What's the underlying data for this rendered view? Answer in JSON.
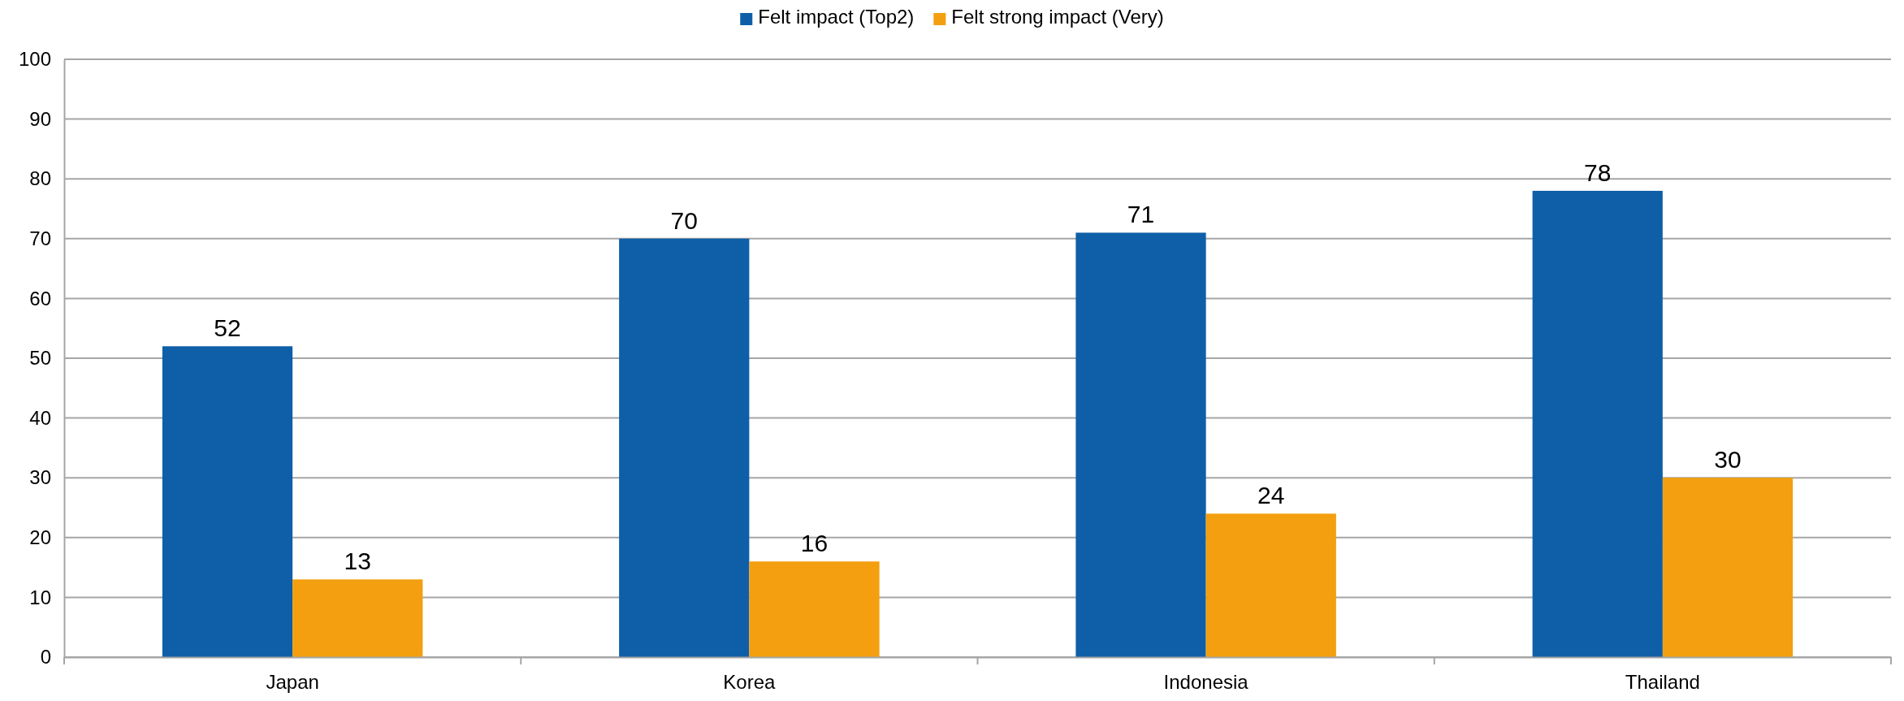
{
  "chart_data": {
    "type": "bar",
    "categories": [
      "Japan",
      "Korea",
      "Indonesia",
      "Thailand"
    ],
    "series": [
      {
        "name": "Felt impact (Top2)",
        "color": "#0e5fa8",
        "values": [
          52,
          70,
          71,
          78
        ]
      },
      {
        "name": "Felt strong impact (Very)",
        "color": "#f39f0f",
        "values": [
          13,
          16,
          24,
          30
        ]
      }
    ],
    "ylim": [
      0,
      100
    ],
    "yticks": [
      0,
      10,
      20,
      30,
      40,
      50,
      60,
      70,
      80,
      90,
      100
    ],
    "grid": "y",
    "legend": "top",
    "data_labels": true
  }
}
